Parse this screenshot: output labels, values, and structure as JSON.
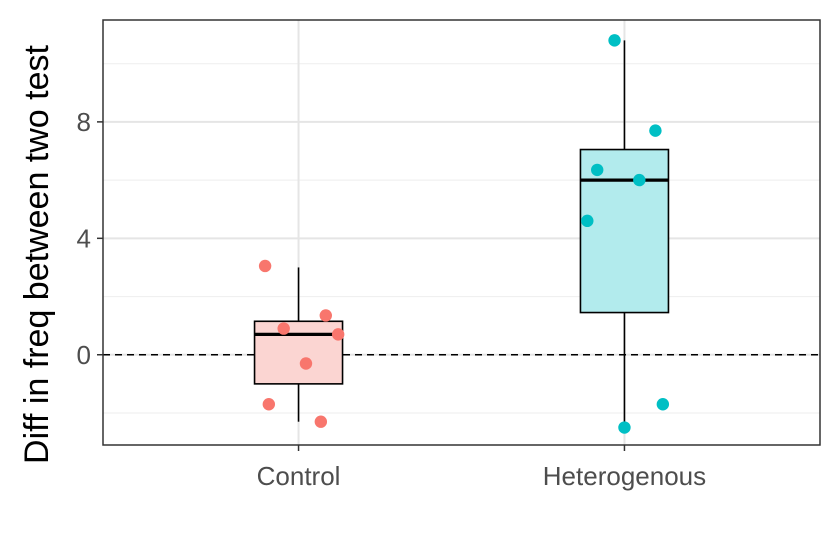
{
  "chart_data": {
    "type": "boxplot",
    "title": "",
    "xlabel": "",
    "ylabel": "Diff in freq between two test",
    "ylim": [
      -3.1,
      11.5
    ],
    "yticks": [
      0,
      4,
      8
    ],
    "grid": true,
    "reference_line": {
      "y": 0,
      "style": "dashed"
    },
    "categories": [
      "Control",
      "Heterogenous"
    ],
    "groups": [
      {
        "name": "Control",
        "color": "#f8766d",
        "fill": "#fbd5d2",
        "box": {
          "min": -2.3,
          "q1": -1.0,
          "median": 0.7,
          "q3": 1.15,
          "max": 3.0
        },
        "points": [
          {
            "x": -0.27,
            "y": 3.05
          },
          {
            "x": 0.22,
            "y": 1.35
          },
          {
            "x": -0.12,
            "y": 0.9
          },
          {
            "x": 0.32,
            "y": 0.7
          },
          {
            "x": 0.06,
            "y": -0.3
          },
          {
            "x": -0.24,
            "y": -1.7
          },
          {
            "x": 0.18,
            "y": -2.3
          }
        ]
      },
      {
        "name": "Heterogenous",
        "color": "#00bfc4",
        "fill": "#b2ebed",
        "box": {
          "min": -2.5,
          "q1": 1.45,
          "median": 6.0,
          "q3": 7.05,
          "max": 10.8
        },
        "points": [
          {
            "x": -0.08,
            "y": 10.8
          },
          {
            "x": 0.25,
            "y": 7.7
          },
          {
            "x": -0.22,
            "y": 6.35
          },
          {
            "x": 0.12,
            "y": 6.0
          },
          {
            "x": -0.3,
            "y": 4.6
          },
          {
            "x": 0.31,
            "y": -1.7
          },
          {
            "x": 0.0,
            "y": -2.5
          }
        ]
      }
    ]
  }
}
